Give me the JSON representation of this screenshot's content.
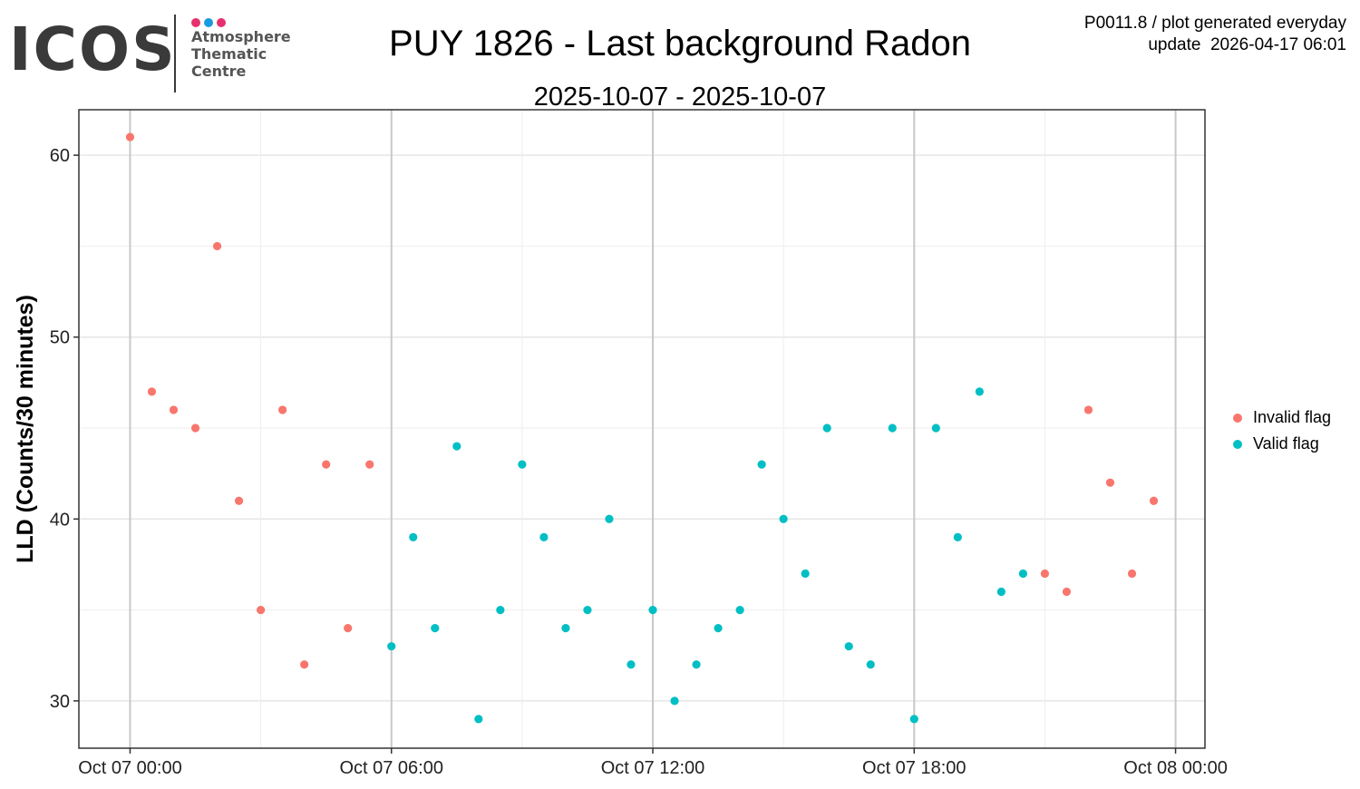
{
  "logo": {
    "word": "ICOS",
    "lines": [
      "Atmosphere",
      "Thematic",
      "Centre"
    ],
    "dot_colors": [
      "#e6316f",
      "#1a9be0",
      "#e6316f"
    ]
  },
  "header": {
    "meta_line1": "P0011.8 / plot generated everyday",
    "meta_line2": "update  2026-04-17 06:01"
  },
  "chart_data": {
    "type": "scatter",
    "title": "PUY 1826 - Last background Radon",
    "subtitle": "2025-10-07 - 2025-10-07",
    "xlabel": "",
    "ylabel": "LLD (Counts/30 minutes)",
    "xlim_hours": [
      -2.35,
      49.35
    ],
    "ylim": [
      27.4,
      62.5
    ],
    "x_ticks": [
      {
        "hour": 0,
        "label": "Oct 07 00:00"
      },
      {
        "hour": 12,
        "label": "Oct 07 06:00"
      },
      {
        "hour": 24,
        "label": "Oct 07 12:00"
      },
      {
        "hour": 36,
        "label": "Oct 07 18:00"
      },
      {
        "hour": 48,
        "label": "Oct 08 00:00"
      }
    ],
    "y_ticks": [
      30,
      40,
      50,
      60
    ],
    "grid": true,
    "legend_position": "right",
    "series": [
      {
        "name": "Invalid flag",
        "color": "#f8766d",
        "points": [
          [
            0.0,
            61
          ],
          [
            1.0,
            47
          ],
          [
            2.0,
            46
          ],
          [
            3.0,
            45
          ],
          [
            4.0,
            55
          ],
          [
            5.0,
            41
          ],
          [
            6.0,
            35
          ],
          [
            7.0,
            46
          ],
          [
            8.0,
            32
          ],
          [
            9.0,
            43
          ],
          [
            10.0,
            34
          ],
          [
            11.0,
            43
          ],
          [
            42.0,
            37
          ],
          [
            43.0,
            36
          ],
          [
            44.0,
            46
          ],
          [
            45.0,
            42
          ],
          [
            46.0,
            37
          ],
          [
            47.0,
            41
          ]
        ]
      },
      {
        "name": "Valid flag",
        "color": "#00bfc4",
        "points": [
          [
            12.0,
            33
          ],
          [
            13.0,
            39
          ],
          [
            14.0,
            34
          ],
          [
            15.0,
            44
          ],
          [
            16.0,
            29
          ],
          [
            17.0,
            35
          ],
          [
            18.0,
            43
          ],
          [
            19.0,
            39
          ],
          [
            20.0,
            34
          ],
          [
            21.0,
            35
          ],
          [
            22.0,
            40
          ],
          [
            23.0,
            32
          ],
          [
            24.0,
            35
          ],
          [
            25.0,
            30
          ],
          [
            26.0,
            32
          ],
          [
            27.0,
            34
          ],
          [
            28.0,
            35
          ],
          [
            29.0,
            43
          ],
          [
            30.0,
            40
          ],
          [
            31.0,
            37
          ],
          [
            32.0,
            45
          ],
          [
            33.0,
            33
          ],
          [
            34.0,
            32
          ],
          [
            35.0,
            45
          ],
          [
            36.0,
            29
          ],
          [
            37.0,
            45
          ],
          [
            38.0,
            39
          ],
          [
            39.0,
            47
          ],
          [
            40.0,
            36
          ],
          [
            41.0,
            37
          ]
        ]
      }
    ]
  }
}
